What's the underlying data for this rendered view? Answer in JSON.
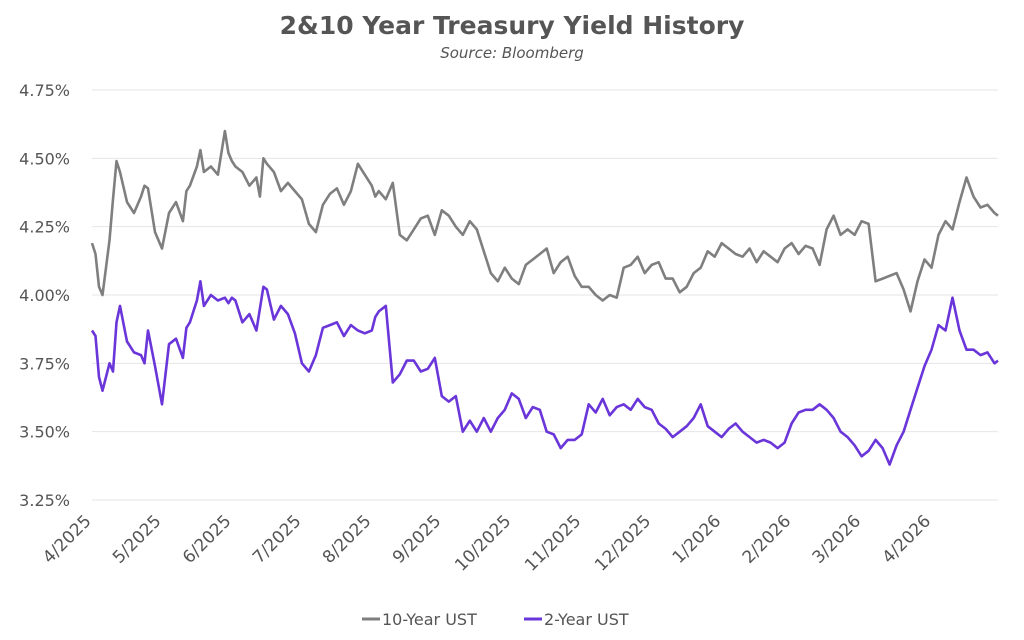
{
  "chart_data": {
    "type": "line",
    "title": "2&10 Year Treasury Yield History",
    "subtitle": "Source: Bloomberg",
    "xlabel": "",
    "ylabel": "",
    "ylim": [
      3.25,
      4.75
    ],
    "y_ticks": [
      "3.25%",
      "3.50%",
      "3.75%",
      "4.00%",
      "4.25%",
      "4.50%",
      "4.75%"
    ],
    "y_tick_values": [
      3.25,
      3.5,
      3.75,
      4.0,
      4.25,
      4.5,
      4.75
    ],
    "x_ticks": [
      "4/2025",
      "5/2025",
      "6/2025",
      "7/2025",
      "8/2025",
      "9/2025",
      "10/2025",
      "11/2025",
      "12/2025",
      "1/2026",
      "2/2026",
      "3/2026",
      "4/2026"
    ],
    "x_months": [
      0,
      1,
      2,
      3,
      4,
      5,
      6,
      7,
      8,
      9,
      10,
      11,
      12
    ],
    "legend_position": "bottom-center",
    "grid": true,
    "series": [
      {
        "name": "10-Year UST",
        "color": "#7f7f7f",
        "x": [
          0,
          0.05,
          0.1,
          0.15,
          0.25,
          0.3,
          0.35,
          0.4,
          0.5,
          0.6,
          0.7,
          0.75,
          0.8,
          0.9,
          1.0,
          1.1,
          1.2,
          1.3,
          1.35,
          1.4,
          1.5,
          1.55,
          1.6,
          1.7,
          1.8,
          1.9,
          1.95,
          2.0,
          2.05,
          2.15,
          2.25,
          2.35,
          2.4,
          2.45,
          2.5,
          2.6,
          2.7,
          2.8,
          2.9,
          3.0,
          3.1,
          3.2,
          3.3,
          3.4,
          3.5,
          3.6,
          3.7,
          3.8,
          3.9,
          4.0,
          4.05,
          4.1,
          4.2,
          4.3,
          4.4,
          4.5,
          4.6,
          4.7,
          4.8,
          4.9,
          5.0,
          5.1,
          5.2,
          5.3,
          5.4,
          5.5,
          5.6,
          5.7,
          5.8,
          5.9,
          6.0,
          6.1,
          6.2,
          6.3,
          6.4,
          6.5,
          6.6,
          6.7,
          6.8,
          6.9,
          7.0,
          7.1,
          7.2,
          7.3,
          7.4,
          7.5,
          7.6,
          7.7,
          7.8,
          7.9,
          8.0,
          8.1,
          8.2,
          8.3,
          8.4,
          8.5,
          8.6,
          8.7,
          8.8,
          8.9,
          9.0,
          9.1,
          9.2,
          9.3,
          9.4,
          9.5,
          9.6,
          9.7,
          9.8,
          9.9,
          10.0,
          10.1,
          10.2,
          10.3,
          10.4,
          10.5,
          10.6,
          10.7,
          10.8,
          10.9,
          11.0,
          11.1,
          11.2,
          11.3,
          11.4,
          11.5,
          11.6,
          11.7,
          11.8,
          11.9,
          12.0,
          12.1,
          12.2,
          12.3,
          12.4,
          12.5,
          12.6,
          12.7,
          12.8,
          12.9,
          12.95
        ],
        "values": [
          4.19,
          4.15,
          4.03,
          4.0,
          4.2,
          4.35,
          4.49,
          4.45,
          4.34,
          4.3,
          4.36,
          4.4,
          4.39,
          4.23,
          4.17,
          4.3,
          4.34,
          4.27,
          4.38,
          4.4,
          4.47,
          4.53,
          4.45,
          4.47,
          4.44,
          4.6,
          4.52,
          4.49,
          4.47,
          4.45,
          4.4,
          4.43,
          4.36,
          4.5,
          4.48,
          4.45,
          4.38,
          4.41,
          4.38,
          4.35,
          4.26,
          4.23,
          4.33,
          4.37,
          4.39,
          4.33,
          4.38,
          4.48,
          4.44,
          4.4,
          4.36,
          4.38,
          4.35,
          4.41,
          4.22,
          4.2,
          4.24,
          4.28,
          4.29,
          4.22,
          4.31,
          4.29,
          4.25,
          4.22,
          4.27,
          4.24,
          4.16,
          4.08,
          4.05,
          4.1,
          4.06,
          4.04,
          4.11,
          4.13,
          4.15,
          4.17,
          4.08,
          4.12,
          4.14,
          4.07,
          4.03,
          4.03,
          4.0,
          3.98,
          4.0,
          3.99,
          4.1,
          4.11,
          4.14,
          4.08,
          4.11,
          4.12,
          4.06,
          4.06,
          4.01,
          4.03,
          4.08,
          4.1,
          4.16,
          4.14,
          4.19,
          4.17,
          4.15,
          4.14,
          4.17,
          4.12,
          4.16,
          4.14,
          4.12,
          4.17,
          4.19,
          4.15,
          4.18,
          4.17,
          4.11,
          4.24,
          4.29,
          4.22,
          4.24,
          4.22,
          4.27,
          4.26,
          4.05,
          4.06,
          4.07,
          4.08,
          4.02,
          3.94,
          4.05,
          4.13,
          4.1,
          4.22,
          4.27,
          4.24,
          4.34,
          4.43,
          4.36,
          4.32,
          4.33,
          4.3,
          4.29
        ]
      },
      {
        "name": "2-Year UST",
        "color": "#6a35d9",
        "x": [
          0,
          0.05,
          0.1,
          0.15,
          0.25,
          0.3,
          0.35,
          0.4,
          0.5,
          0.6,
          0.7,
          0.75,
          0.8,
          0.9,
          1.0,
          1.1,
          1.2,
          1.3,
          1.35,
          1.4,
          1.5,
          1.55,
          1.6,
          1.7,
          1.8,
          1.9,
          1.95,
          2.0,
          2.05,
          2.15,
          2.25,
          2.35,
          2.4,
          2.45,
          2.5,
          2.6,
          2.7,
          2.8,
          2.9,
          3.0,
          3.1,
          3.2,
          3.3,
          3.4,
          3.5,
          3.6,
          3.7,
          3.8,
          3.9,
          4.0,
          4.05,
          4.1,
          4.2,
          4.3,
          4.4,
          4.5,
          4.6,
          4.7,
          4.8,
          4.9,
          5.0,
          5.1,
          5.2,
          5.3,
          5.4,
          5.5,
          5.6,
          5.7,
          5.8,
          5.9,
          6.0,
          6.1,
          6.2,
          6.3,
          6.4,
          6.5,
          6.6,
          6.7,
          6.8,
          6.9,
          7.0,
          7.1,
          7.2,
          7.3,
          7.4,
          7.5,
          7.6,
          7.7,
          7.8,
          7.9,
          8.0,
          8.1,
          8.2,
          8.3,
          8.4,
          8.5,
          8.6,
          8.7,
          8.8,
          8.9,
          9.0,
          9.1,
          9.2,
          9.3,
          9.4,
          9.5,
          9.6,
          9.7,
          9.8,
          9.9,
          10.0,
          10.1,
          10.2,
          10.3,
          10.4,
          10.5,
          10.6,
          10.7,
          10.8,
          10.9,
          11.0,
          11.1,
          11.2,
          11.3,
          11.4,
          11.5,
          11.6,
          11.7,
          11.8,
          11.9,
          12.0,
          12.1,
          12.2,
          12.3,
          12.4,
          12.5,
          12.6,
          12.7,
          12.8,
          12.9,
          12.95
        ],
        "values": [
          3.87,
          3.85,
          3.7,
          3.65,
          3.75,
          3.72,
          3.9,
          3.96,
          3.83,
          3.79,
          3.78,
          3.75,
          3.87,
          3.74,
          3.6,
          3.82,
          3.84,
          3.77,
          3.88,
          3.9,
          3.98,
          4.05,
          3.96,
          4.0,
          3.98,
          3.99,
          3.97,
          3.99,
          3.98,
          3.9,
          3.93,
          3.87,
          3.95,
          4.03,
          4.02,
          3.91,
          3.96,
          3.93,
          3.86,
          3.75,
          3.72,
          3.78,
          3.88,
          3.89,
          3.9,
          3.85,
          3.89,
          3.87,
          3.86,
          3.87,
          3.92,
          3.94,
          3.96,
          3.68,
          3.71,
          3.76,
          3.76,
          3.72,
          3.73,
          3.77,
          3.63,
          3.61,
          3.63,
          3.5,
          3.54,
          3.5,
          3.55,
          3.5,
          3.55,
          3.58,
          3.64,
          3.62,
          3.55,
          3.59,
          3.58,
          3.5,
          3.49,
          3.44,
          3.47,
          3.47,
          3.49,
          3.6,
          3.57,
          3.62,
          3.56,
          3.59,
          3.6,
          3.58,
          3.62,
          3.59,
          3.58,
          3.53,
          3.51,
          3.48,
          3.5,
          3.52,
          3.55,
          3.6,
          3.52,
          3.5,
          3.48,
          3.51,
          3.53,
          3.5,
          3.48,
          3.46,
          3.47,
          3.46,
          3.44,
          3.46,
          3.53,
          3.57,
          3.58,
          3.58,
          3.6,
          3.58,
          3.55,
          3.5,
          3.48,
          3.45,
          3.41,
          3.43,
          3.47,
          3.44,
          3.38,
          3.45,
          3.5,
          3.58,
          3.66,
          3.74,
          3.8,
          3.89,
          3.87,
          3.99,
          3.87,
          3.8,
          3.8,
          3.78,
          3.79,
          3.75,
          3.76
        ]
      }
    ]
  }
}
